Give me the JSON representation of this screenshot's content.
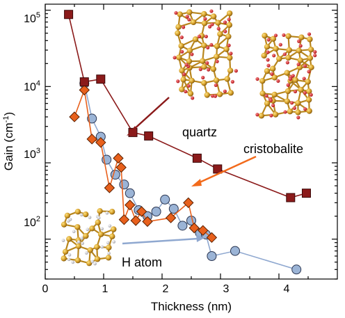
{
  "chart_data": {
    "type": "scatter",
    "xlabel": "Thickness (nm)",
    "ylabel": "Gain (cm",
    "ylabel_sup": "-1",
    "ylabel_close": ")",
    "xlim": [
      0,
      5
    ],
    "ylim": [
      30,
      120000
    ],
    "yscale": "log",
    "x_ticks": [
      "0",
      "1",
      "2",
      "3",
      "4"
    ],
    "y_ticks": [
      {
        "base": "10",
        "exp": "2"
      },
      {
        "base": "10",
        "exp": "3"
      },
      {
        "base": "10",
        "exp": "4"
      },
      {
        "base": "10",
        "exp": "5"
      }
    ],
    "annotations": [
      "quartz",
      "cristobalite",
      "H atom"
    ],
    "series": [
      {
        "marker": "square",
        "color": "#8b1a1a",
        "x": [
          0.4,
          0.67,
          0.95,
          1.5,
          1.77,
          2.6,
          2.95,
          4.2,
          4.47
        ],
        "y": [
          88000,
          11500,
          12500,
          2500,
          2250,
          1150,
          830,
          350,
          400
        ]
      },
      {
        "marker": "diamond",
        "color": "#e8601c",
        "x": [
          0.5,
          0.67,
          0.8,
          0.95,
          1.1,
          1.25,
          1.3,
          1.35,
          1.45,
          1.55,
          1.65,
          1.75,
          2.15,
          2.45,
          2.55,
          2.7,
          2.85
        ],
        "y": [
          4000,
          9000,
          2050,
          1850,
          470,
          1150,
          870,
          180,
          280,
          175,
          230,
          170,
          190,
          300,
          140,
          130,
          105
        ]
      },
      {
        "marker": "circle",
        "color": "#9bb4d6",
        "x": [
          0.67,
          0.8,
          0.95,
          1.05,
          1.2,
          1.35,
          1.45,
          1.6,
          1.75,
          1.9,
          2.05,
          2.2,
          2.35,
          2.5,
          2.65,
          2.75,
          2.85,
          3.25,
          4.3
        ],
        "y": [
          11000,
          3800,
          2200,
          1100,
          700,
          520,
          400,
          240,
          200,
          230,
          330,
          250,
          150,
          175,
          120,
          115,
          60,
          70,
          40
        ]
      }
    ]
  }
}
